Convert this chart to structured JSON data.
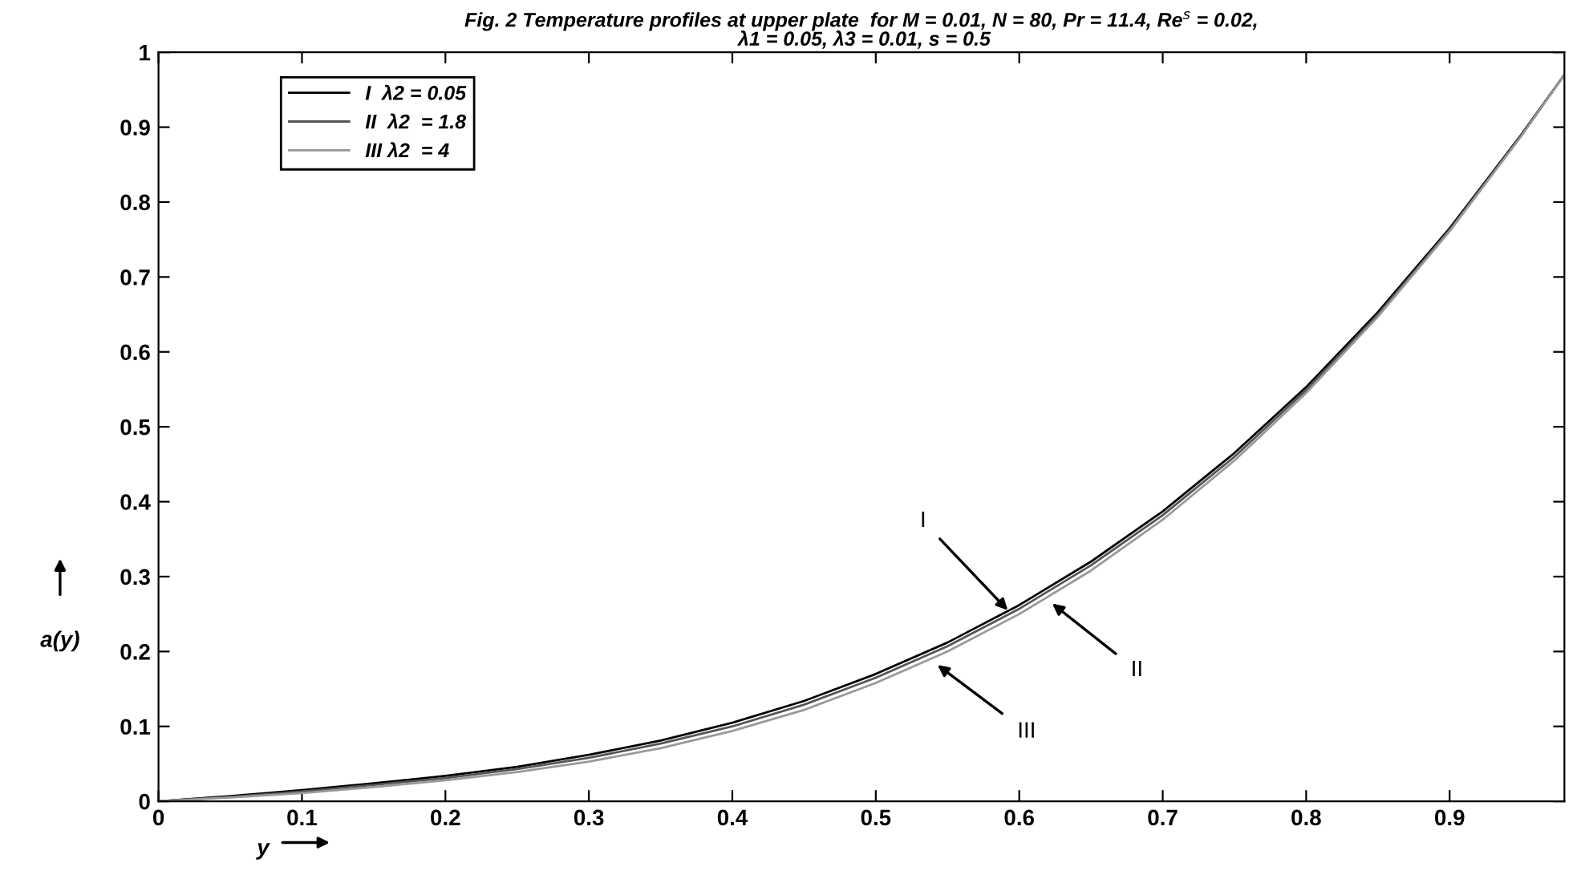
{
  "chart_data": {
    "type": "line",
    "title": "Fig. 2 Temperature profiles at upper plate  for M = 0.01, N = 80, Pr = 11.4, Re$^{s}$ = 0.02,\n λ1 = 0.05, λ3 = 0.01, s = 0.5",
    "xlabel": "y",
    "ylabel": "a(y)",
    "x": [
      0,
      0.05,
      0.1,
      0.15,
      0.2,
      0.25,
      0.3,
      0.35,
      0.4,
      0.45,
      0.5,
      0.55,
      0.6,
      0.65,
      0.7,
      0.75,
      0.8,
      0.85,
      0.9,
      0.95,
      0.98
    ],
    "series": [
      {
        "name": "I  λ2 = 0.05",
        "color": "#000000",
        "values": [
          0,
          0.007,
          0.015,
          0.024,
          0.034,
          0.046,
          0.062,
          0.081,
          0.105,
          0.134,
          0.17,
          0.212,
          0.262,
          0.32,
          0.387,
          0.465,
          0.553,
          0.653,
          0.765,
          0.89,
          0.97
        ]
      },
      {
        "name": "II  λ2  = 1.8",
        "color": "#555555",
        "values": [
          0,
          0.006,
          0.013,
          0.022,
          0.031,
          0.043,
          0.058,
          0.077,
          0.1,
          0.129,
          0.165,
          0.207,
          0.257,
          0.315,
          0.382,
          0.46,
          0.549,
          0.65,
          0.763,
          0.889,
          0.97
        ]
      },
      {
        "name": "III λ2  = 4",
        "color": "#999999",
        "values": [
          0,
          0.005,
          0.011,
          0.019,
          0.028,
          0.039,
          0.053,
          0.071,
          0.094,
          0.122,
          0.158,
          0.2,
          0.25,
          0.308,
          0.376,
          0.455,
          0.545,
          0.647,
          0.761,
          0.888,
          0.97
        ]
      }
    ],
    "annotations": [
      {
        "text": "I",
        "x": 0.592,
        "y": 0.255
      },
      {
        "text": "II",
        "x": 0.623,
        "y": 0.264
      },
      {
        "text": "III",
        "x": 0.543,
        "y": 0.182
      }
    ],
    "xlim": [
      0,
      0.98
    ],
    "ylim": [
      0,
      1
    ],
    "xticks": [
      0,
      0.1,
      0.2,
      0.3,
      0.4,
      0.5,
      0.6,
      0.7,
      0.8,
      0.9
    ],
    "yticks": [
      0,
      0.1,
      0.2,
      0.3,
      0.4,
      0.5,
      0.6,
      0.7,
      0.8,
      0.9,
      1
    ],
    "grid": false,
    "legend": "top left",
    "marker": "none",
    "line_style": "solid"
  }
}
